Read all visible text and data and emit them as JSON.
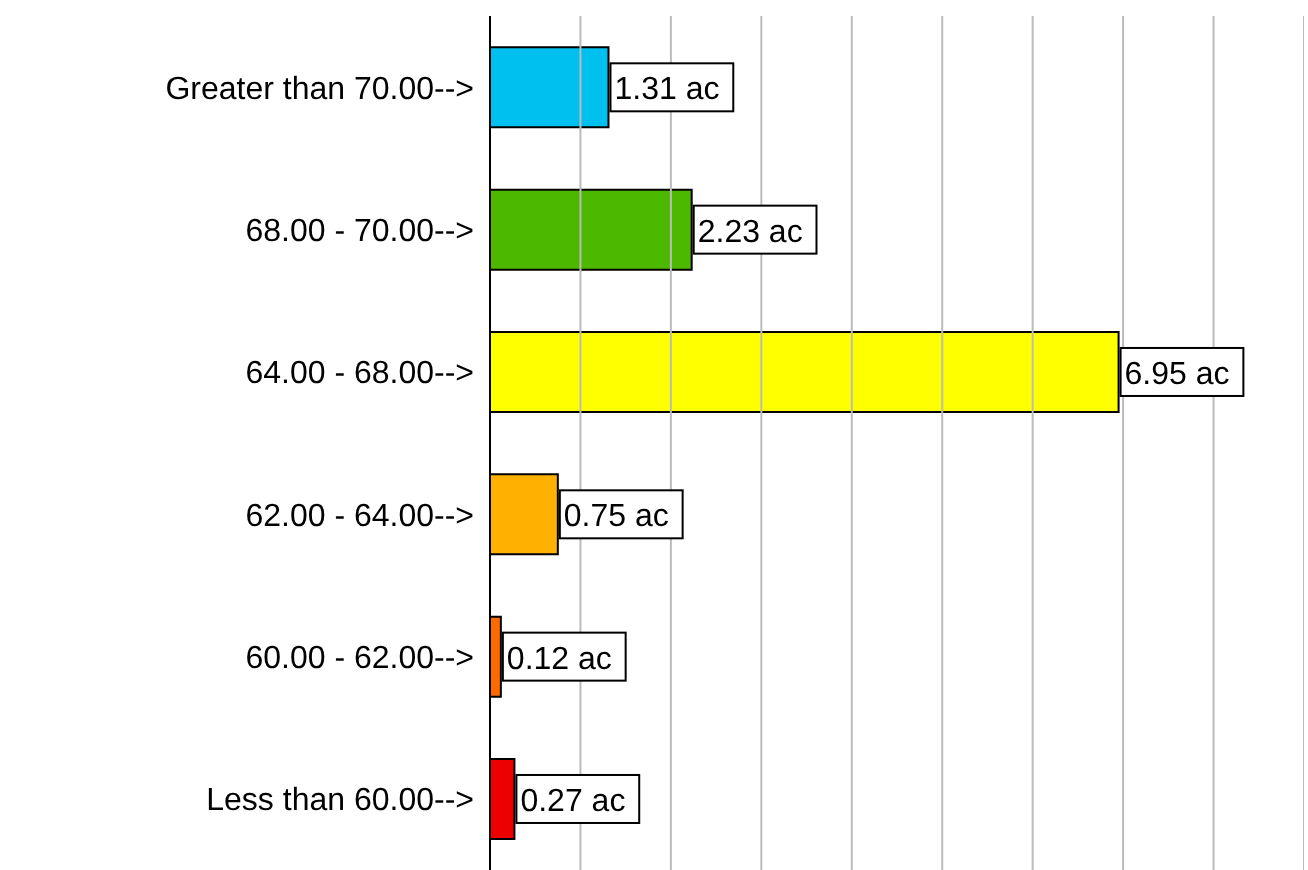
{
  "chart_data": {
    "type": "bar",
    "orientation": "horizontal",
    "categories": [
      "Greater than 70.00-->",
      "68.00 - 70.00-->",
      "64.00 - 68.00-->",
      "62.00 - 64.00-->",
      "60.00 - 62.00-->",
      "Less than 60.00-->"
    ],
    "values": [
      1.31,
      2.23,
      6.95,
      0.75,
      0.12,
      0.27
    ],
    "colors": [
      "#00c0f0",
      "#4cb800",
      "#ffff00",
      "#ffb000",
      "#ff6a00",
      "#ee0000"
    ],
    "value_labels": [
      "1.31 ac",
      "2.23 ac",
      "6.95 ac",
      "0.75 ac",
      "0.12 ac",
      "0.27 ac"
    ],
    "xlim": [
      0,
      9
    ],
    "xticks": [
      {
        "value": 0,
        "label": null
      },
      {
        "value": 1,
        "label": null
      },
      {
        "value": 2,
        "label": null
      },
      {
        "value": 3,
        "label": null
      },
      {
        "value": 4,
        "label": null
      },
      {
        "value": 5,
        "label": null
      },
      {
        "value": 6,
        "label": null
      },
      {
        "value": 7,
        "label": null
      },
      {
        "value": 8,
        "label": null
      },
      {
        "value": 9,
        "label": null
      }
    ],
    "grid": "x",
    "tick_labels": "y"
  }
}
